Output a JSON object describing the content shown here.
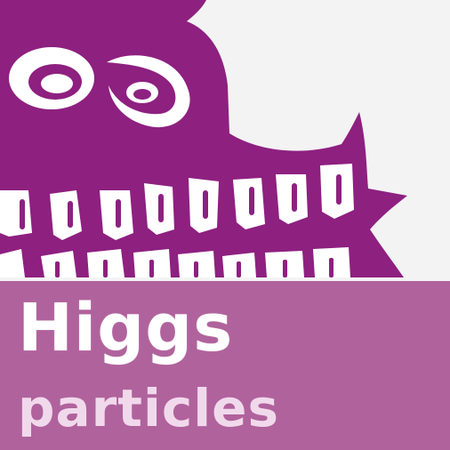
{
  "caption": {
    "title": "Higgs",
    "subtitle": "particles"
  },
  "colors": {
    "background": "#f3f3f3",
    "monster": "#8e2080",
    "teeth": "#ffffff",
    "band": "#b0629c",
    "title_text": "#ffffff",
    "subtitle_text": "#f1d9ec"
  },
  "icons": {
    "illustration": "purple-monster-with-teeth-icon"
  }
}
